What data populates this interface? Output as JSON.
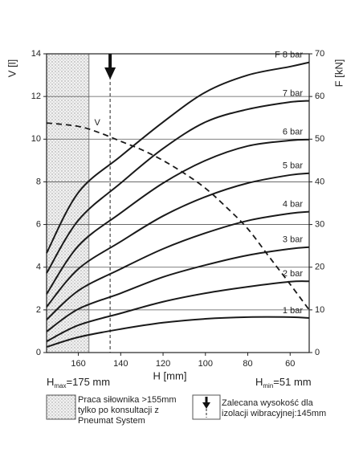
{
  "chart_data": {
    "type": "line",
    "y_label": "V [l]",
    "y2_label": "F [kN]",
    "x_label": "H [mm]",
    "xlim": [
      175,
      51
    ],
    "xticks": [
      160,
      140,
      120,
      100,
      80,
      60
    ],
    "ylim": [
      0,
      14
    ],
    "yticks": [
      0,
      2,
      4,
      6,
      8,
      10,
      12,
      14
    ],
    "y2lim": [
      0,
      70
    ],
    "y2ticks": [
      0,
      10,
      20,
      30,
      40,
      50,
      60,
      70
    ],
    "grid": true,
    "x": [
      175,
      160,
      140,
      120,
      100,
      80,
      60,
      51
    ],
    "series": [
      {
        "name": "F 8 bar",
        "color": "#1a1a1a",
        "axis": "y2",
        "values": [
          23.3,
          37.5,
          46,
          54,
          61,
          65,
          67,
          68
        ]
      },
      {
        "name": "7 bar",
        "color": "#1a1a1a",
        "axis": "y2",
        "values": [
          18.6,
          31,
          39.7,
          47.8,
          54,
          57,
          58.7,
          59
        ]
      },
      {
        "name": "6 bar",
        "color": "#1a1a1a",
        "axis": "y2",
        "values": [
          13.7,
          25,
          32.7,
          39.7,
          45,
          48.4,
          49.7,
          49.9
        ]
      },
      {
        "name": "5 bar",
        "color": "#1a1a1a",
        "axis": "y2",
        "values": [
          10.7,
          19.6,
          26,
          32,
          36.5,
          39.7,
          41.6,
          42
        ]
      },
      {
        "name": "4 bar",
        "color": "#1a1a1a",
        "axis": "y2",
        "values": [
          7.7,
          14.5,
          19.6,
          24.3,
          28,
          30.9,
          32.6,
          33
        ]
      },
      {
        "name": "3 bar",
        "color": "#1a1a1a",
        "axis": "y2",
        "values": [
          4.9,
          10.2,
          13.9,
          17.7,
          20.5,
          22.8,
          24.3,
          24.7
        ]
      },
      {
        "name": "2 bar",
        "color": "#1a1a1a",
        "axis": "y2",
        "values": [
          2.6,
          6.4,
          9.2,
          11.9,
          13.9,
          15.4,
          16.6,
          16.7
        ]
      },
      {
        "name": "1 bar",
        "color": "#1a1a1a",
        "axis": "y2",
        "values": [
          1.3,
          3.6,
          5.5,
          7,
          7.9,
          8.3,
          8.3,
          8.1
        ]
      },
      {
        "name": "V",
        "color": "#1a1a1a",
        "dashed": true,
        "x": [
          175,
          160,
          150,
          140,
          130,
          120,
          110,
          100,
          90,
          80,
          70,
          60,
          51
        ],
        "values": [
          10.76,
          10.6,
          10.3,
          9.9,
          9.5,
          9,
          8.4,
          7.7,
          6.8,
          5.8,
          4.5,
          3.2,
          2.0
        ]
      }
    ],
    "shaded_region": [
      175,
      155
    ],
    "recommended_h": 145,
    "h_max": {
      "symbol": "H",
      "sub": "max",
      "text": "=175 mm"
    },
    "h_min": {
      "symbol": "H",
      "sub": "min",
      "text": "=51 mm"
    },
    "legend_hatch": [
      "Praca siłownika >155mm",
      "tylko po konsultacji z",
      "Pneumat System"
    ],
    "legend_arrow": [
      "Zalecana wysokość dla",
      "izolacji wibracyjnej:145mm"
    ]
  }
}
